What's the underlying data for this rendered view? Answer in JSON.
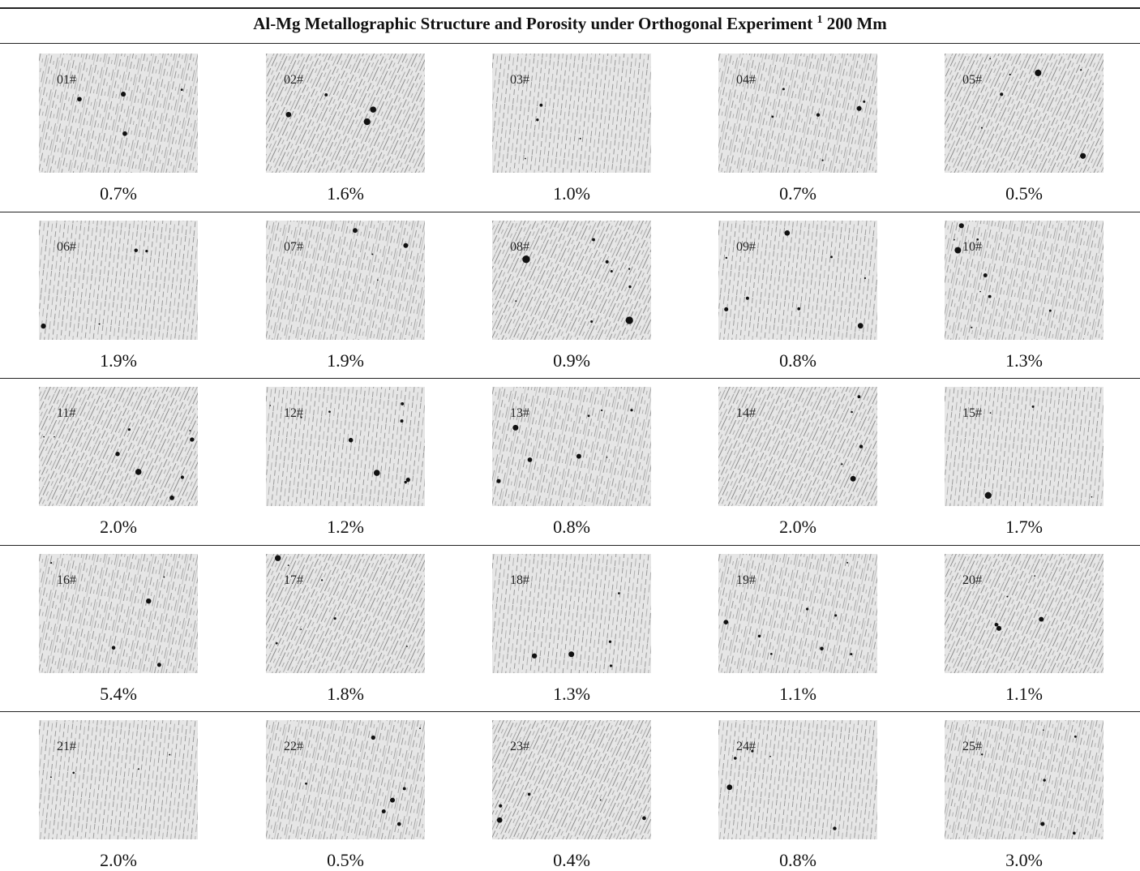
{
  "table": {
    "title": {
      "text": "Al-Mg Metallographic Structure and Porosity under Orthogonal Experiment",
      "superscript": "1",
      "suffix": "200 Mm"
    },
    "rows": [
      [
        {
          "label": "01#",
          "porosity": "0.7%"
        },
        {
          "label": "02#",
          "porosity": "1.6%"
        },
        {
          "label": "03#",
          "porosity": "1.0%"
        },
        {
          "label": "04#",
          "porosity": "0.7%"
        },
        {
          "label": "05#",
          "porosity": "0.5%"
        }
      ],
      [
        {
          "label": "06#",
          "porosity": "1.9%"
        },
        {
          "label": "07#",
          "porosity": "1.9%"
        },
        {
          "label": "08#",
          "porosity": "0.9%"
        },
        {
          "label": "09#",
          "porosity": "0.8%"
        },
        {
          "label": "10#",
          "porosity": "1.3%"
        }
      ],
      [
        {
          "label": "11#",
          "porosity": "2.0%"
        },
        {
          "label": "12#",
          "porosity": "1.2%"
        },
        {
          "label": "13#",
          "porosity": "0.8%"
        },
        {
          "label": "14#",
          "porosity": "2.0%"
        },
        {
          "label": "15#",
          "porosity": "1.7%"
        }
      ],
      [
        {
          "label": "16#",
          "porosity": "5.4%"
        },
        {
          "label": "17#",
          "porosity": "1.8%"
        },
        {
          "label": "18#",
          "porosity": "1.3%"
        },
        {
          "label": "19#",
          "porosity": "1.1%"
        },
        {
          "label": "20#",
          "porosity": "1.1%"
        }
      ],
      [
        {
          "label": "21#",
          "porosity": "2.0%"
        },
        {
          "label": "22#",
          "porosity": "0.5%"
        },
        {
          "label": "23#",
          "porosity": "0.4%"
        },
        {
          "label": "24#",
          "porosity": "0.8%"
        },
        {
          "label": "25#",
          "porosity": "3.0%"
        }
      ]
    ]
  }
}
